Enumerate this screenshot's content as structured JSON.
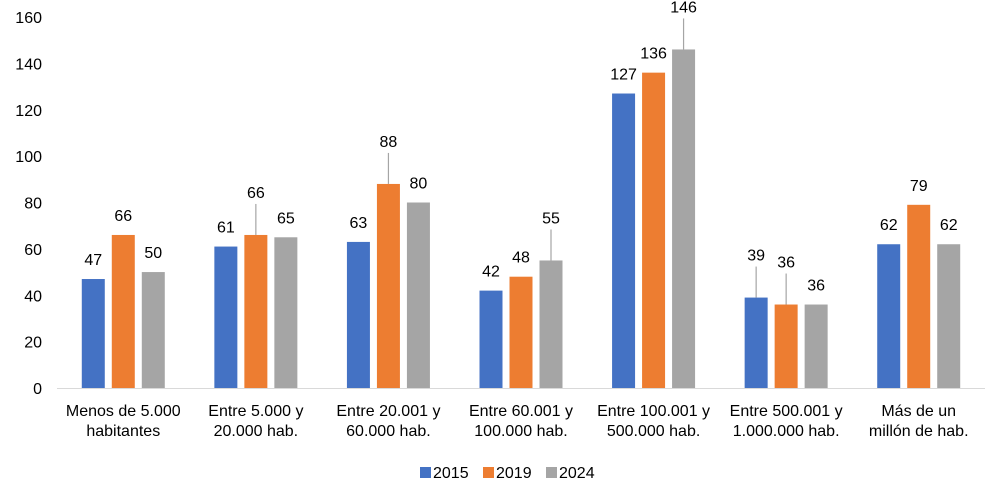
{
  "chart_data": {
    "type": "bar",
    "title": "",
    "xlabel": "",
    "ylabel": "",
    "ylim": [
      0,
      160
    ],
    "yticks": [
      0,
      20,
      40,
      60,
      80,
      100,
      120,
      140,
      160
    ],
    "grid": false,
    "legend_position": "bottom",
    "categories": [
      [
        "Menos de 5.000",
        "habitantes"
      ],
      [
        "Entre 5.000 y",
        "20.000 hab."
      ],
      [
        "Entre 20.001 y",
        "60.000 hab."
      ],
      [
        "Entre 60.001 y",
        "100.000 hab."
      ],
      [
        "Entre 100.001 y",
        "500.000 hab."
      ],
      [
        "Entre 500.001 y",
        "1.000.000 hab."
      ],
      [
        "Más de un",
        "millón de hab."
      ]
    ],
    "series": [
      {
        "name": "2015",
        "color": "#4472C4",
        "values": [
          47,
          61,
          63,
          42,
          127,
          39,
          62
        ]
      },
      {
        "name": "2019",
        "color": "#ED7D31",
        "values": [
          66,
          66,
          88,
          48,
          136,
          36,
          79
        ]
      },
      {
        "name": "2024",
        "color": "#A5A5A5",
        "values": [
          50,
          65,
          80,
          55,
          146,
          36,
          62
        ]
      }
    ],
    "data_labels": [
      [
        "47",
        "61",
        "63",
        "42",
        "127",
        "39",
        "62"
      ],
      [
        "66",
        "66",
        "88",
        "48",
        "136",
        "36",
        "79"
      ],
      [
        "50",
        "65",
        "80",
        "55",
        "146",
        "36",
        "62"
      ]
    ],
    "leader_lines": [
      {
        "series": 0,
        "category": 5
      },
      {
        "series": 1,
        "category": 1
      },
      {
        "series": 1,
        "category": 2
      },
      {
        "series": 1,
        "category": 5
      },
      {
        "series": 2,
        "category": 3
      },
      {
        "series": 2,
        "category": 4
      }
    ]
  }
}
